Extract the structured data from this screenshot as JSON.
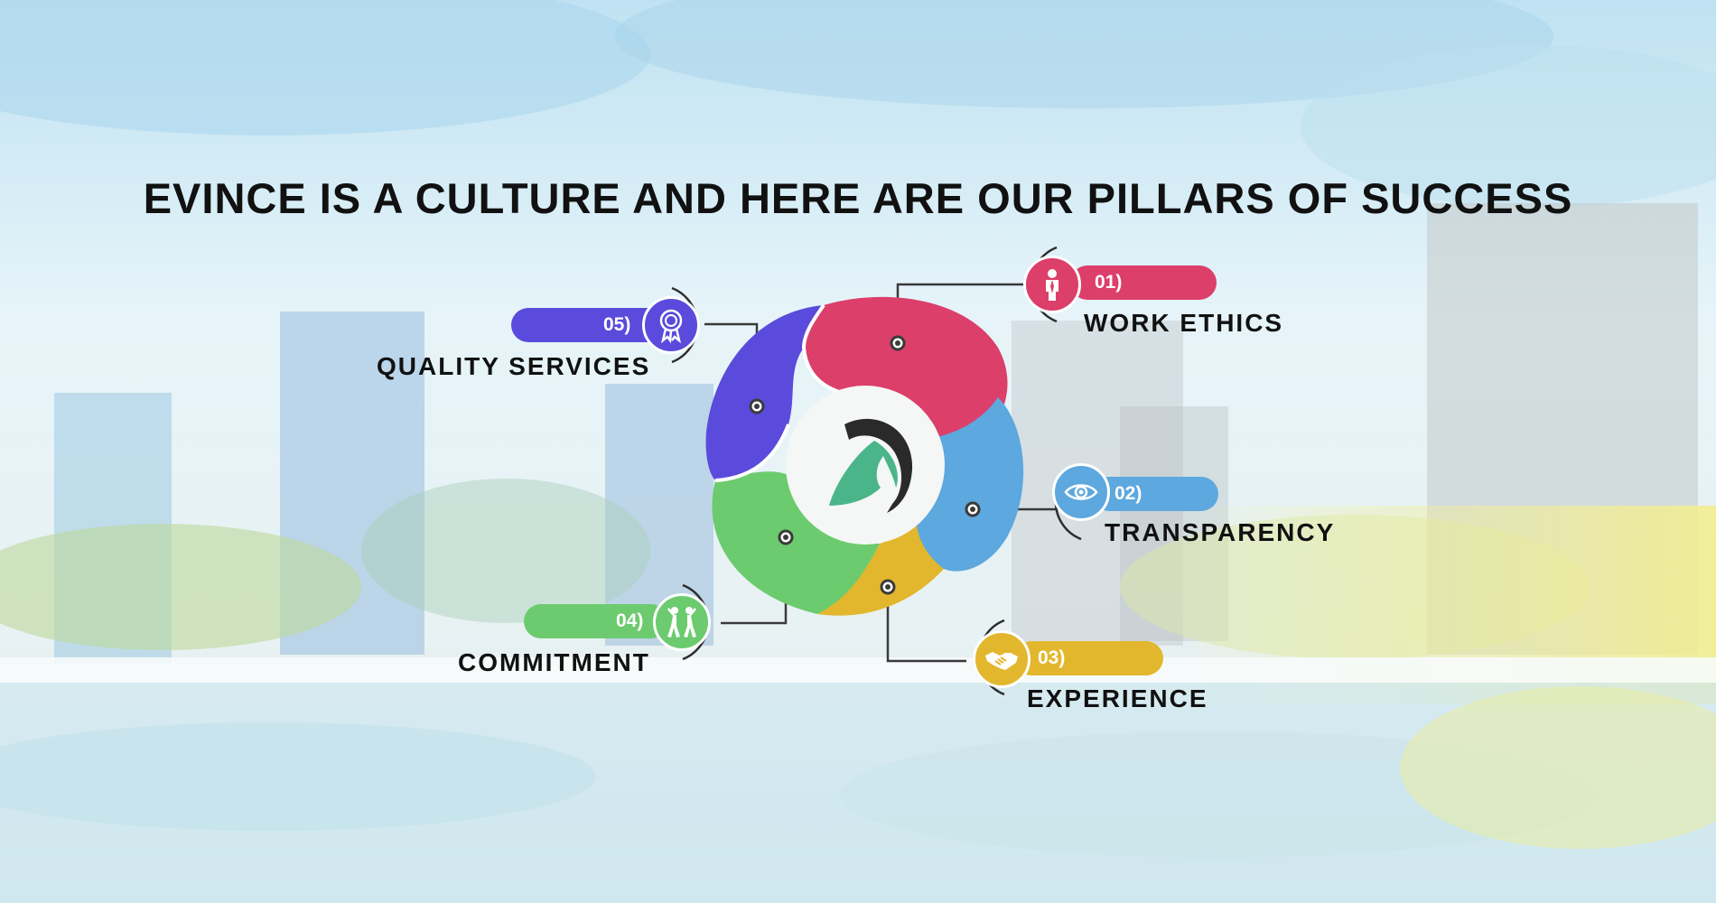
{
  "title": "EVINCE IS A CULTURE AND HERE ARE OUR PILLARS OF SUCCESS",
  "pillars": [
    {
      "number": "01)",
      "label": "WORK ETHICS",
      "icon": "worker-icon",
      "color": "#dc3f6a"
    },
    {
      "number": "02)",
      "label": "TRANSPARENCY",
      "icon": "eye-icon",
      "color": "#5da8de"
    },
    {
      "number": "03)",
      "label": "EXPERIENCE",
      "icon": "handshake-icon",
      "color": "#e3b72d"
    },
    {
      "number": "04)",
      "label": "COMMITMENT",
      "icon": "team-icon",
      "color": "#6ccb6e"
    },
    {
      "number": "05)",
      "label": "QUALITY SERVICES",
      "icon": "award-icon",
      "color": "#5a4bdc"
    }
  ],
  "center": {
    "icon": "evince-logo-icon"
  }
}
